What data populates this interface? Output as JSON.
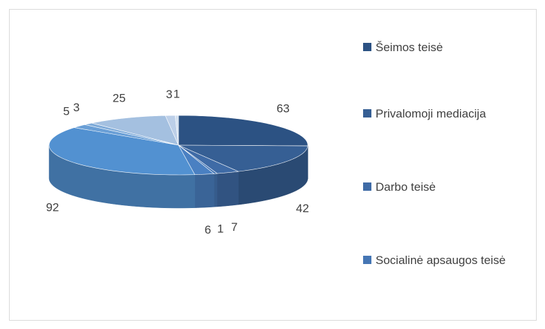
{
  "chart_data": {
    "type": "pie",
    "categories": [
      "Šeimos teisė",
      "Privalomoji mediacija",
      "Darbo teisė",
      "Socialinė apsaugos teisė",
      null,
      null,
      null,
      null,
      null,
      null,
      null
    ],
    "values": [
      63,
      42,
      7,
      1,
      6,
      92,
      5,
      3,
      25,
      3,
      1
    ],
    "colors": [
      "#2c5283",
      "#365f94",
      "#3f6ba6",
      "#4576b4",
      "#4a80c2",
      "#5291d1",
      "#6a9fd6",
      "#7fabd9",
      "#a4c0e0",
      "#bccfe8",
      "#d3e0f0"
    ],
    "legend": "right"
  }
}
